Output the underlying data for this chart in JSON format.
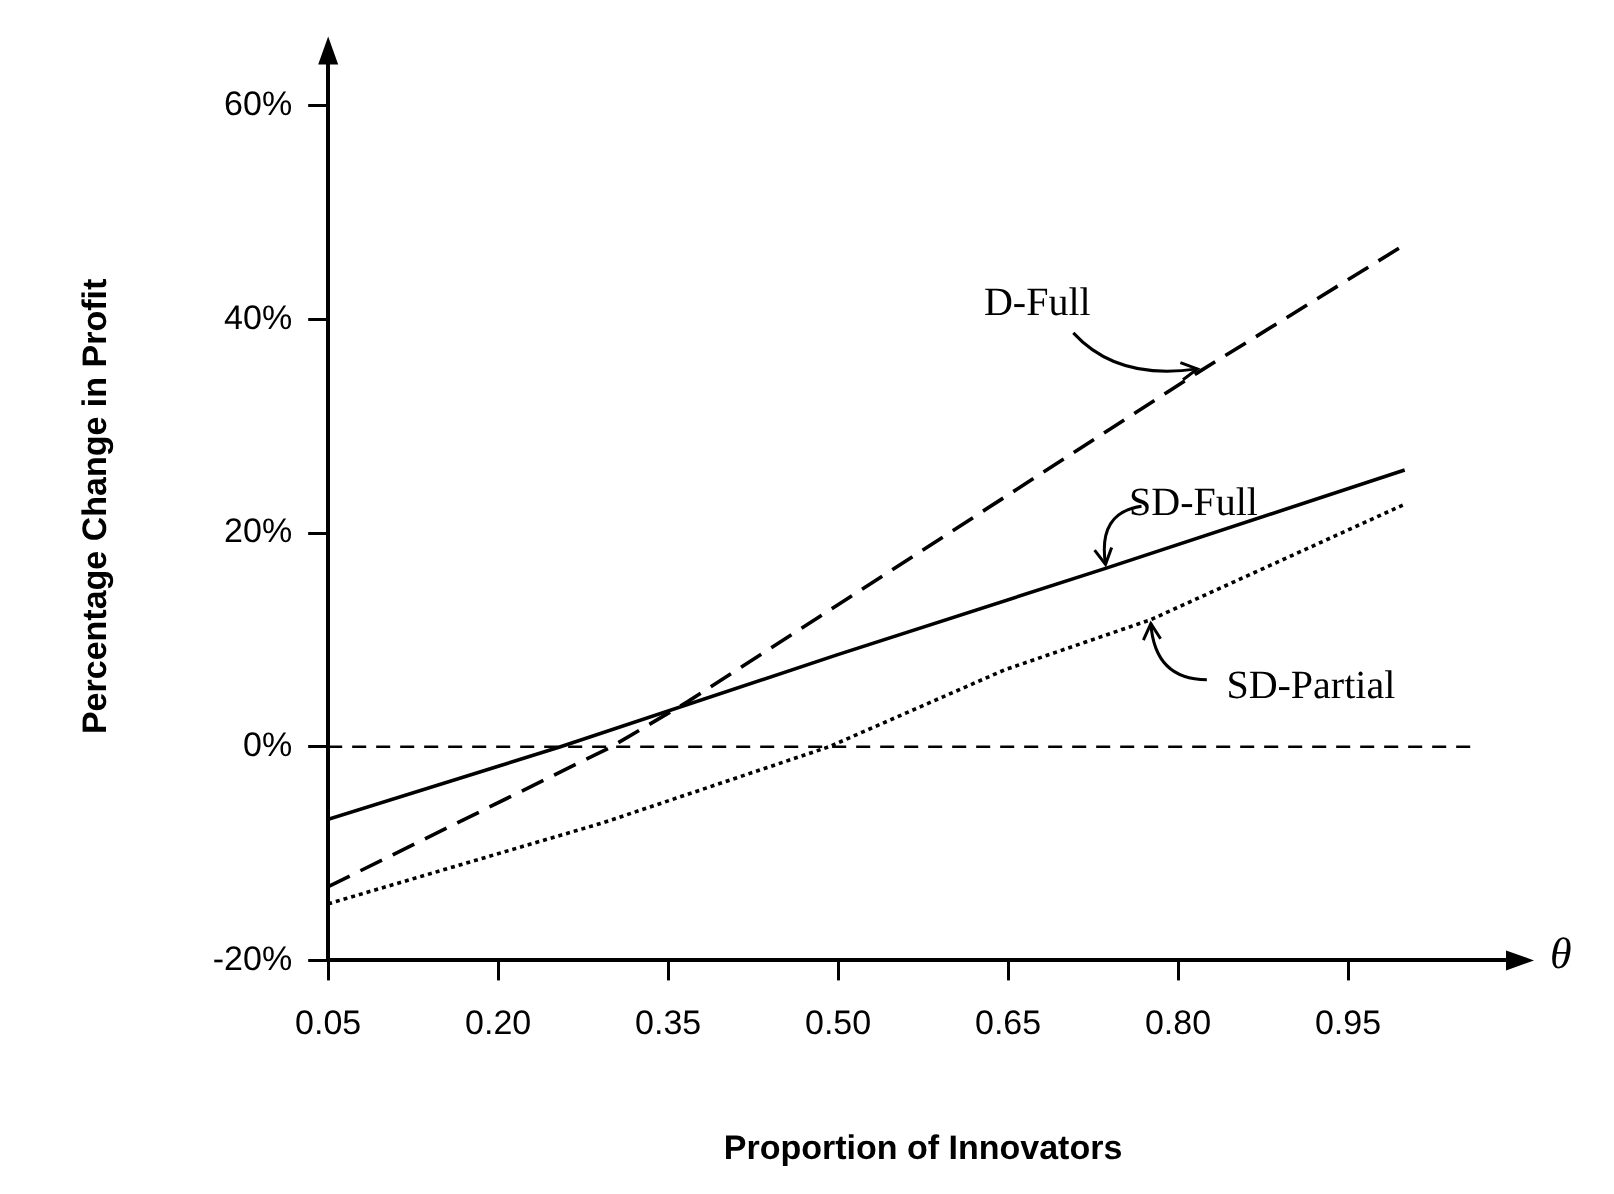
{
  "chart_data": {
    "type": "line",
    "xlabel": "Proportion of Innovators",
    "ylabel": "Percentage Change in Profit",
    "xlim": [
      0.05,
      1.1
    ],
    "ylim": [
      -20,
      65
    ],
    "xticks": [
      {
        "value": 0.05,
        "label": "0.05"
      },
      {
        "value": 0.2,
        "label": "0.20"
      },
      {
        "value": 0.35,
        "label": "0.35"
      },
      {
        "value": 0.5,
        "label": "0.50"
      },
      {
        "value": 0.65,
        "label": "0.65"
      },
      {
        "value": 0.8,
        "label": "0.80"
      },
      {
        "value": 0.95,
        "label": "0.95"
      }
    ],
    "yticks": [
      {
        "value": -20,
        "label": "-20%"
      },
      {
        "value": 0,
        "label": "0%"
      },
      {
        "value": 20,
        "label": "20%"
      },
      {
        "value": 40,
        "label": "40%"
      },
      {
        "value": 60,
        "label": "60%"
      }
    ],
    "series": [
      {
        "name": "D-Full",
        "color": "#000000",
        "line_style": "dashed",
        "x": [
          0.05,
          0.3,
          0.367,
          0.817,
          1.0
        ],
        "values": [
          -13.1,
          0,
          4.2,
          35,
          47
        ]
      },
      {
        "name": "SD-Full",
        "color": "#000000",
        "line_style": "solid",
        "x": [
          0.05,
          0.255,
          0.499,
          0.736,
          1.0
        ],
        "values": [
          -6.8,
          0,
          8.6,
          16.7,
          25.9
        ]
      },
      {
        "name": "SD-Partial",
        "color": "#000000",
        "line_style": "dotted",
        "x": [
          0.05,
          0.293,
          0.492,
          0.647,
          0.776,
          1.0
        ],
        "values": [
          -14.7,
          -7.1,
          0,
          7.2,
          11.9,
          22.7
        ]
      }
    ],
    "ref_lines": [
      {
        "axis": "y",
        "value": 0,
        "color": "#000000",
        "line_style": "dashed"
      }
    ],
    "annotations": [
      "θ"
    ],
    "grid": false,
    "legend": false,
    "marker": "none"
  }
}
